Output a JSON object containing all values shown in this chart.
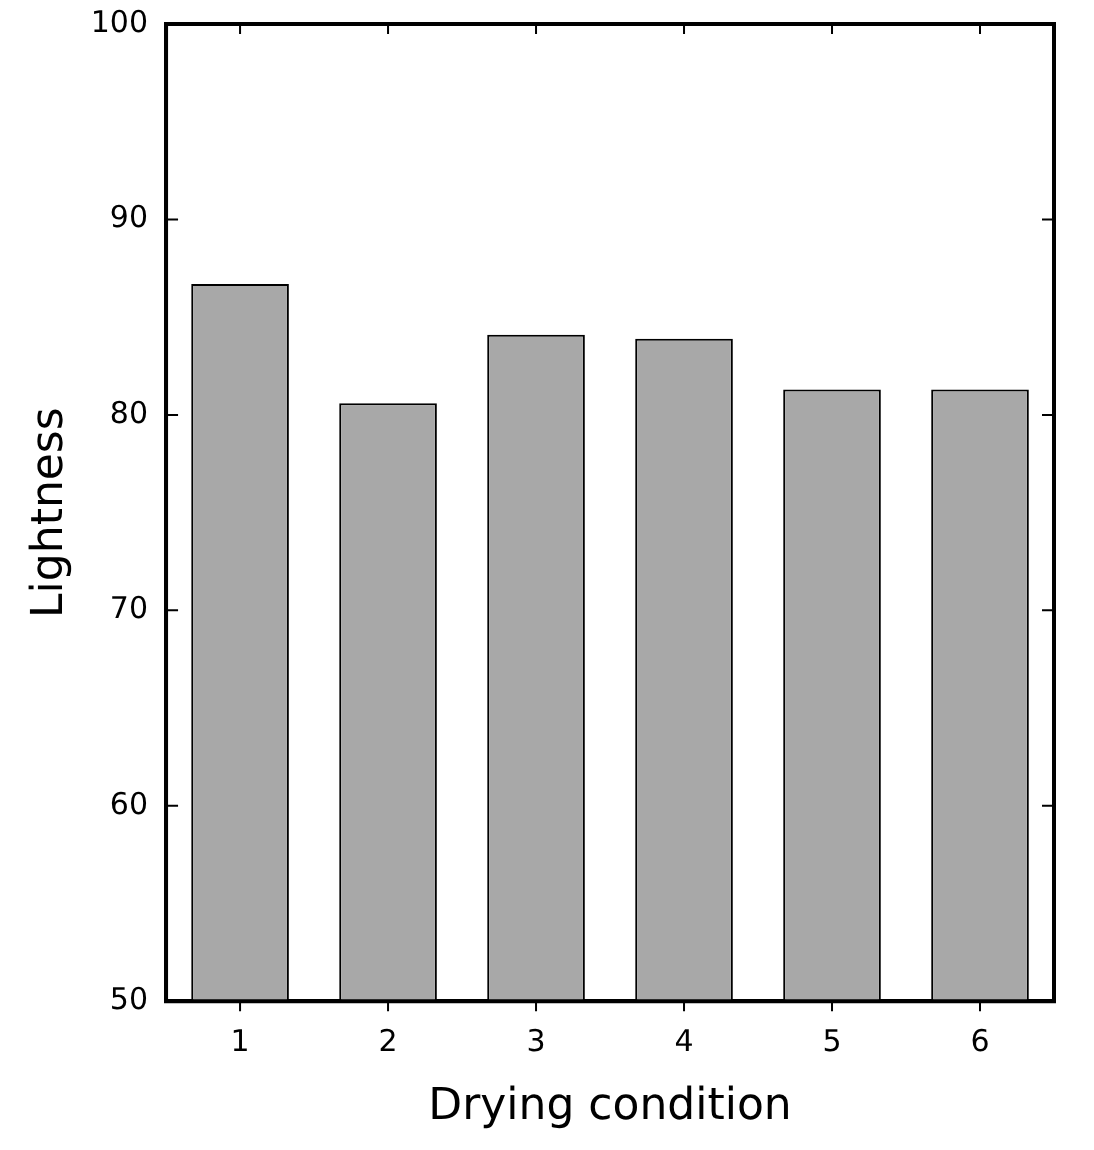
{
  "chart_data": {
    "type": "bar",
    "xlabel": "Drying condition",
    "ylabel": "Lightness",
    "categories": [
      "1",
      "2",
      "3",
      "4",
      "5",
      "6"
    ],
    "values": [
      86.7,
      80.6,
      84.1,
      83.9,
      81.3,
      81.3
    ],
    "color": "#a8a8a8",
    "ylim": [
      50,
      100
    ],
    "yticks": [
      50,
      60,
      70,
      80,
      90,
      100
    ],
    "grid": false,
    "legend": false
  }
}
